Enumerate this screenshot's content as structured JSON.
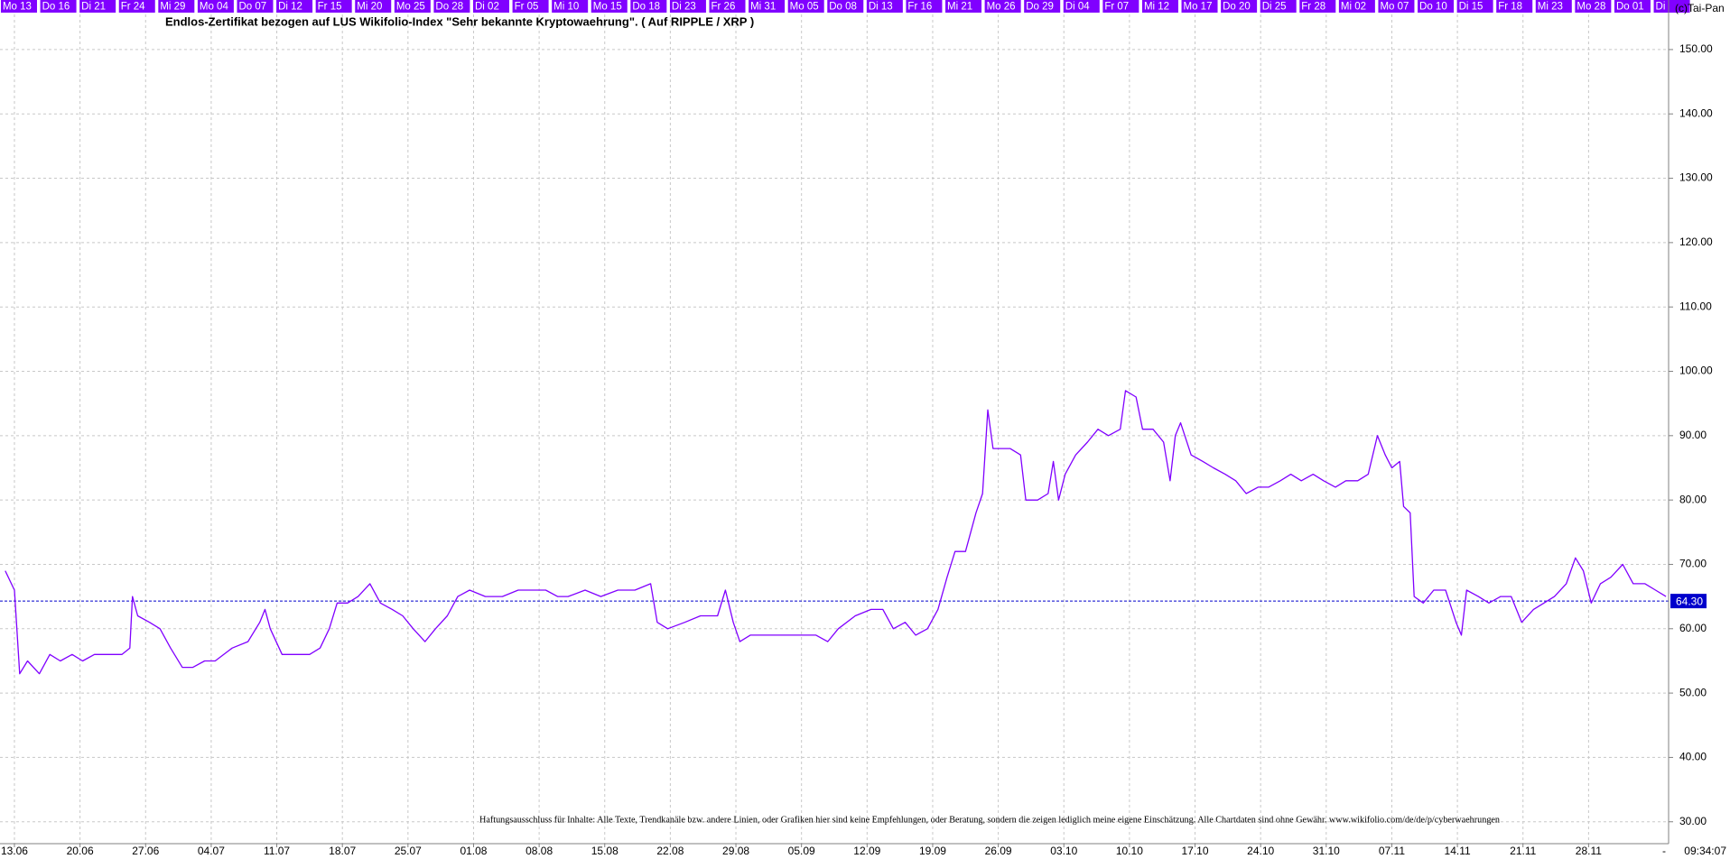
{
  "chart_data": {
    "type": "line",
    "title": "Endlos-Zertifikat bezogen auf LUS Wikifolio-Index \"Sehr bekannte Kryptowaehrung\". ( Auf RIPPLE / XRP )",
    "copyright": "(c)Tai-Pan",
    "disclaimer": "Haftungsausschluss für Inhalte: Alle Texte, Trendkanäle bzw. andere Linien, oder Grafiken hier sind keine Empfehlungen, oder Beratung, sondern die zeigen lediglich meine eigene Einschätzung. Alle Chartdaten sind ohne Gewähr. www.wikifolio.com/de/de/p/cyberwaehrungen",
    "time": "09:34:07",
    "end_marker": "-",
    "color": "#8000ff",
    "grid": true,
    "last_value": {
      "value": 64.3,
      "label": "64.30"
    },
    "xlim": [
      -1.1,
      126.1
    ],
    "ylim": [
      26.6,
      157.7
    ],
    "yticks": [
      {
        "value": 30,
        "label": "30.00"
      },
      {
        "value": 40,
        "label": "40.00"
      },
      {
        "value": 50,
        "label": "50.00"
      },
      {
        "value": 60,
        "label": "60.00"
      },
      {
        "value": 70,
        "label": "70.00"
      },
      {
        "value": 80,
        "label": "80.00"
      },
      {
        "value": 90,
        "label": "90.00"
      },
      {
        "value": 100,
        "label": "100.00"
      },
      {
        "value": 110,
        "label": "110.00"
      },
      {
        "value": 120,
        "label": "120.00"
      },
      {
        "value": 130,
        "label": "130.00"
      },
      {
        "value": 140,
        "label": "140.00"
      },
      {
        "value": 150,
        "label": "150.00"
      }
    ],
    "xticks": [
      {
        "value": 0,
        "label": "13.06"
      },
      {
        "value": 5,
        "label": "20.06"
      },
      {
        "value": 10,
        "label": "27.06"
      },
      {
        "value": 15,
        "label": "04.07"
      },
      {
        "value": 20,
        "label": "11.07"
      },
      {
        "value": 25,
        "label": "18.07"
      },
      {
        "value": 30,
        "label": "25.07"
      },
      {
        "value": 35,
        "label": "01.08"
      },
      {
        "value": 40,
        "label": "08.08"
      },
      {
        "value": 45,
        "label": "15.08"
      },
      {
        "value": 50,
        "label": "22.08"
      },
      {
        "value": 55,
        "label": "29.08"
      },
      {
        "value": 60,
        "label": "05.09"
      },
      {
        "value": 65,
        "label": "12.09"
      },
      {
        "value": 70,
        "label": "19.09"
      },
      {
        "value": 75,
        "label": "26.09"
      },
      {
        "value": 80,
        "label": "03.10"
      },
      {
        "value": 85,
        "label": "10.10"
      },
      {
        "value": 90,
        "label": "17.10"
      },
      {
        "value": 95,
        "label": "24.10"
      },
      {
        "value": 100,
        "label": "31.10"
      },
      {
        "value": 105,
        "label": "07.11"
      },
      {
        "value": 110,
        "label": "14.11"
      },
      {
        "value": 115,
        "label": "21.11"
      },
      {
        "value": 120,
        "label": "28.11"
      }
    ],
    "top_xticks": [
      {
        "value": 0,
        "label": "Mo 13"
      },
      {
        "value": 3,
        "label": "Do 16"
      },
      {
        "value": 6,
        "label": "Di 21"
      },
      {
        "value": 9,
        "label": "Fr 24"
      },
      {
        "value": 12,
        "label": "Mi 29"
      },
      {
        "value": 15,
        "label": "Mo 04"
      },
      {
        "value": 18,
        "label": "Do 07"
      },
      {
        "value": 21,
        "label": "Di 12"
      },
      {
        "value": 24,
        "label": "Fr 15"
      },
      {
        "value": 27,
        "label": "Mi 20"
      },
      {
        "value": 30,
        "label": "Mo 25"
      },
      {
        "value": 33,
        "label": "Do 28"
      },
      {
        "value": 36,
        "label": "Di 02"
      },
      {
        "value": 39,
        "label": "Fr 05"
      },
      {
        "value": 42,
        "label": "Mi 10"
      },
      {
        "value": 45,
        "label": "Mo 15"
      },
      {
        "value": 48,
        "label": "Do 18"
      },
      {
        "value": 51,
        "label": "Di 23"
      },
      {
        "value": 54,
        "label": "Fr 26"
      },
      {
        "value": 57,
        "label": "Mi 31"
      },
      {
        "value": 60,
        "label": "Mo 05"
      },
      {
        "value": 63,
        "label": "Do 08"
      },
      {
        "value": 66,
        "label": "Di 13"
      },
      {
        "value": 69,
        "label": "Fr 16"
      },
      {
        "value": 72,
        "label": "Mi 21"
      },
      {
        "value": 75,
        "label": "Mo 26"
      },
      {
        "value": 78,
        "label": "Do 29"
      },
      {
        "value": 81,
        "label": "Di 04"
      },
      {
        "value": 84,
        "label": "Fr 07"
      },
      {
        "value": 87,
        "label": "Mi 12"
      },
      {
        "value": 90,
        "label": "Mo 17"
      },
      {
        "value": 93,
        "label": "Do 20"
      },
      {
        "value": 96,
        "label": "Di 25"
      },
      {
        "value": 99,
        "label": "Fr 28"
      },
      {
        "value": 102,
        "label": "Mi 02"
      },
      {
        "value": 105,
        "label": "Mo 07"
      },
      {
        "value": 108,
        "label": "Do 10"
      },
      {
        "value": 111,
        "label": "Di 15"
      },
      {
        "value": 114,
        "label": "Fr 18"
      },
      {
        "value": 117,
        "label": "Mi 23"
      },
      {
        "value": 120,
        "label": "Mo 28"
      },
      {
        "value": 123,
        "label": "Do 01"
      },
      {
        "value": 126,
        "label": "Di"
      }
    ],
    "x": [
      -0.7,
      0,
      0.4,
      1.0,
      1.9,
      2.7,
      3.5,
      4.4,
      5.2,
      6.1,
      6.9,
      8.2,
      8.8,
      9.0,
      9.4,
      10.3,
      11.1,
      11.9,
      12.8,
      13.6,
      14.5,
      15.3,
      16.6,
      17.8,
      18.7,
      19.1,
      19.5,
      20.4,
      21.2,
      22.5,
      23.3,
      24.0,
      24.6,
      25.4,
      26.2,
      27.1,
      27.9,
      28.8,
      29.6,
      30.4,
      31.3,
      32.1,
      33.0,
      33.8,
      34.7,
      35.9,
      37.2,
      38.4,
      39.7,
      40.5,
      41.4,
      42.2,
      43.5,
      44.7,
      46.0,
      47.3,
      48.5,
      49.0,
      49.8,
      51.1,
      52.3,
      53.6,
      54.2,
      54.8,
      55.3,
      56.1,
      57.4,
      58.6,
      59.9,
      61.1,
      62.0,
      62.8,
      64.1,
      65.3,
      66.2,
      67.0,
      67.9,
      68.7,
      69.6,
      70.4,
      71.1,
      71.7,
      72.5,
      73.3,
      73.8,
      74.2,
      74.6,
      75.0,
      75.9,
      76.7,
      77.1,
      78.0,
      78.8,
      79.2,
      79.6,
      80.1,
      80.9,
      81.8,
      82.6,
      83.4,
      84.3,
      84.7,
      85.5,
      86.0,
      86.8,
      87.6,
      88.1,
      88.5,
      88.9,
      89.7,
      90.6,
      91.4,
      92.3,
      93.1,
      93.9,
      94.8,
      95.6,
      96.5,
      97.3,
      98.1,
      99.0,
      99.8,
      100.7,
      101.5,
      102.4,
      103.2,
      103.9,
      104.5,
      105.0,
      105.6,
      105.9,
      106.4,
      106.7,
      107.4,
      108.2,
      109.1,
      109.9,
      110.3,
      110.7,
      111.6,
      112.4,
      113.3,
      114.1,
      114.9,
      115.8,
      116.6,
      117.4,
      118.3,
      119.0,
      119.6,
      120.2,
      120.9,
      121.7,
      122.6,
      123.4,
      124.3,
      125.1,
      125.9
    ],
    "values": [
      69,
      66,
      53,
      55,
      53,
      56,
      55,
      56,
      55,
      56,
      56,
      56,
      57,
      65,
      62,
      61,
      60,
      57,
      54,
      54,
      55,
      55,
      57,
      58,
      61,
      63,
      60,
      56,
      56,
      56,
      57,
      60,
      64,
      64,
      65,
      67,
      64,
      63,
      62,
      60,
      58,
      60,
      62,
      65,
      66,
      65,
      65,
      66,
      66,
      66,
      65,
      65,
      66,
      65,
      66,
      66,
      67,
      61,
      60,
      61,
      62,
      62,
      66,
      61,
      58,
      59,
      59,
      59,
      59,
      59,
      58,
      60,
      62,
      63,
      63,
      60,
      61,
      59,
      60,
      63,
      68,
      72,
      72,
      78,
      81,
      94,
      88,
      88,
      88,
      87,
      80,
      80,
      81,
      86,
      80,
      84,
      87,
      89,
      91,
      90,
      91,
      97,
      96,
      91,
      91,
      89,
      83,
      90,
      92,
      87,
      86,
      85,
      84,
      83,
      81,
      82,
      82,
      83,
      84,
      83,
      84,
      83,
      82,
      83,
      83,
      84,
      90,
      87,
      85,
      86,
      79,
      78,
      65,
      64,
      66,
      66,
      61,
      59,
      66,
      65,
      64,
      65,
      65,
      61,
      63,
      64,
      65,
      67,
      71,
      69,
      64,
      67,
      68,
      70,
      67,
      67,
      66,
      65
    ]
  }
}
